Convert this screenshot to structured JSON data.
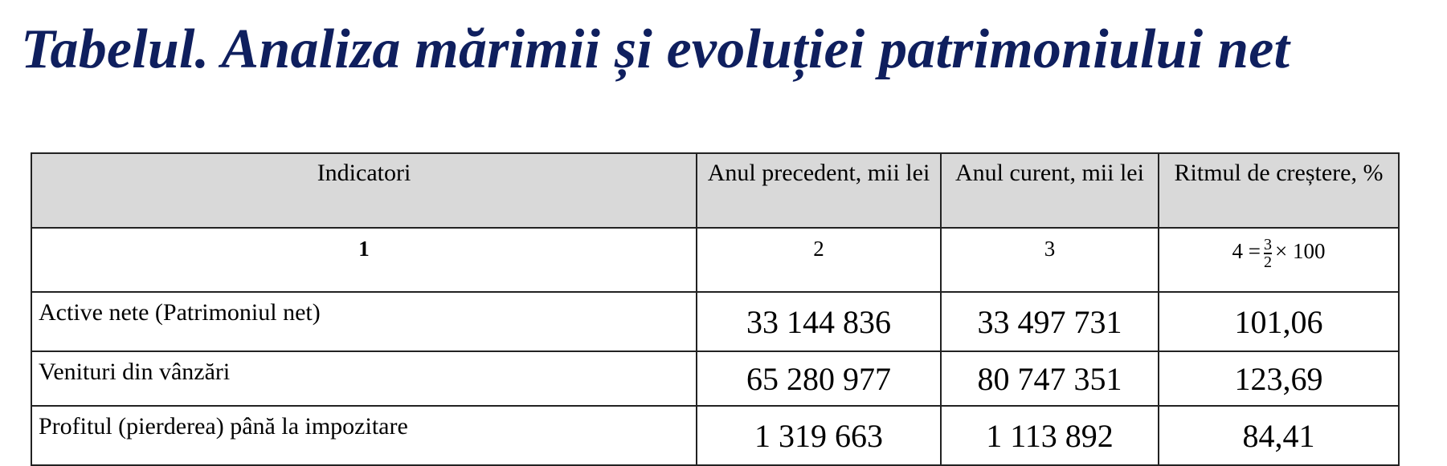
{
  "title": "Tabelul. Analiza mărimii și evoluției patrimoniului net",
  "colors": {
    "title": "#0f1f5e",
    "header_bg": "#d9d9d9"
  },
  "table": {
    "headers": [
      "Indicatori",
      "Anul precedent, mii lei",
      "Anul curent, mii lei",
      "Ritmul de creștere, %"
    ],
    "index_row": {
      "c1": "1",
      "c2": "2",
      "c3": "3",
      "c4_lhs": "4 =",
      "c4_num": "3",
      "c4_den": "2",
      "c4_rhs": "× 100"
    },
    "rows": [
      [
        "Active nete (Patrimoniul net)",
        "33 144 836",
        "33 497 731",
        "101,06"
      ],
      [
        "Venituri din vânzări",
        "65 280 977",
        "80 747 351",
        "123,69"
      ],
      [
        "Profitul (pierderea) până la impozitare",
        "1 319 663",
        "1 113 892",
        "84,41"
      ]
    ]
  }
}
